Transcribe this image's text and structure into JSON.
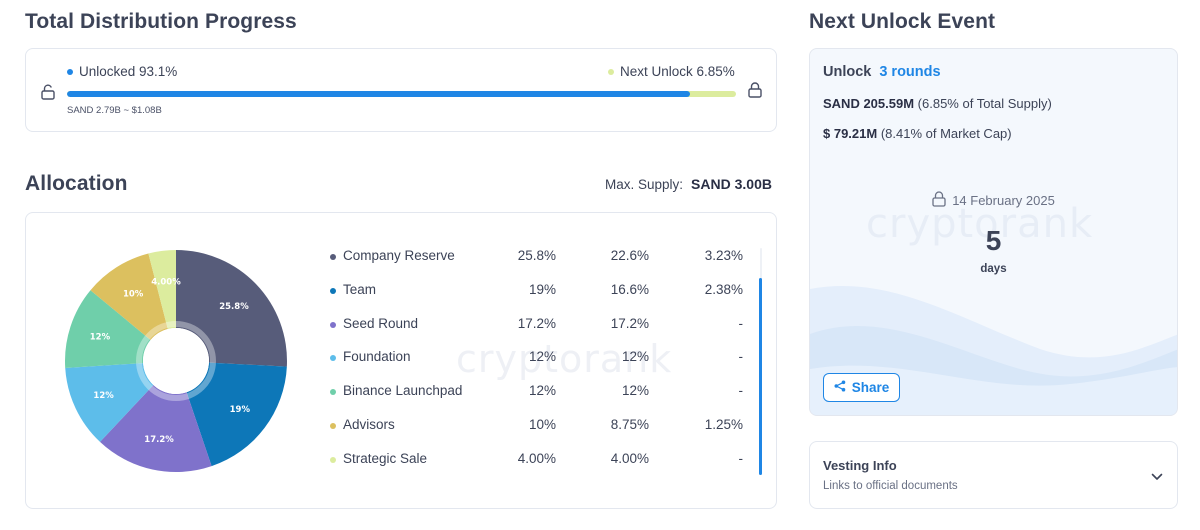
{
  "progress": {
    "title": "Total Distribution Progress",
    "unlocked_label": "Unlocked 93.1%",
    "next_label": "Next Unlock 6.85%",
    "unlocked_fraction": 0.931,
    "token_note": "SAND 2.79B ~ $1.08B",
    "colors": {
      "unlocked": "#1f86e5",
      "next": "#dcec9e"
    }
  },
  "allocation": {
    "title": "Allocation",
    "max_supply_label": "Max. Supply:",
    "max_supply_value": "SAND 3.00B",
    "watermark": "cryptorank",
    "rows": [
      {
        "name": "Company Reserve",
        "pct": "25.8%",
        "col2": "22.6%",
        "col3": "3.23%",
        "color": "#575c7a"
      },
      {
        "name": "Team",
        "pct": "19%",
        "col2": "16.6%",
        "col3": "2.38%",
        "color": "#0d77b8"
      },
      {
        "name": "Seed Round",
        "pct": "17.2%",
        "col2": "17.2%",
        "col3": "-",
        "color": "#7f72cb"
      },
      {
        "name": "Foundation",
        "pct": "12%",
        "col2": "12%",
        "col3": "-",
        "color": "#5dbdea"
      },
      {
        "name": "Binance Launchpad",
        "pct": "12%",
        "col2": "12%",
        "col3": "-",
        "color": "#6fcfaa"
      },
      {
        "name": "Advisors",
        "pct": "10%",
        "col2": "8.75%",
        "col3": "1.25%",
        "color": "#dcc05f"
      },
      {
        "name": "Strategic Sale",
        "pct": "4.00%",
        "col2": "4.00%",
        "col3": "-",
        "color": "#dcec9e"
      }
    ]
  },
  "chart_data": {
    "type": "pie",
    "categories": [
      "Company Reserve",
      "Team",
      "Seed Round",
      "Foundation",
      "Binance Launchpad",
      "Advisors",
      "Strategic Sale"
    ],
    "values": [
      25.8,
      19,
      17.2,
      12,
      12,
      10,
      4.0
    ],
    "data_labels": [
      "25.8%",
      "19%",
      "17.2%",
      "12%",
      "12%",
      "10%",
      "4.00%"
    ],
    "donut": true
  },
  "next_unlock": {
    "title": "Next Unlock Event",
    "unlock_label": "Unlock",
    "rounds": "3 rounds",
    "sand_bold": "SAND 205.59M",
    "sand_rest": "(6.85% of Total Supply)",
    "usd_bold": "$ 79.21M",
    "usd_rest": "(8.41% of Market Cap)",
    "date": "14 February 2025",
    "days_value": "5",
    "days_label": "days",
    "watermark": "cryptorank",
    "share_label": "Share"
  },
  "vesting": {
    "title": "Vesting Info",
    "subtitle": "Links to official documents"
  }
}
